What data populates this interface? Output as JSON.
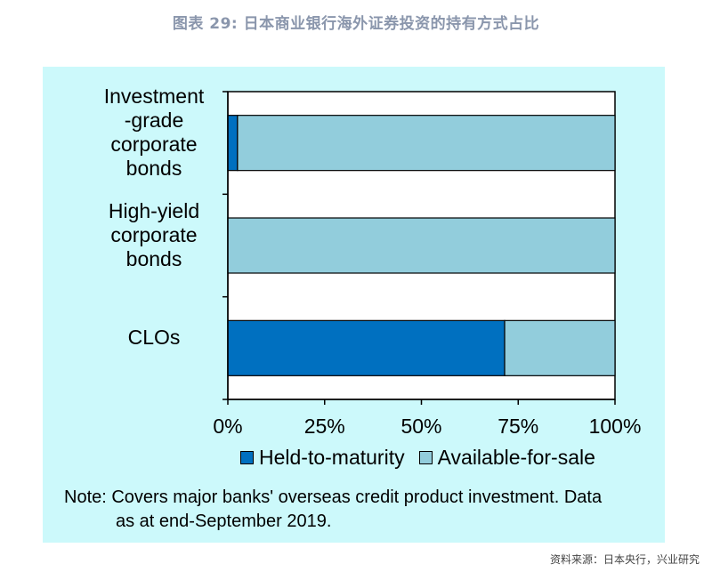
{
  "header": {
    "title": "图表 29: 日本商业银行海外证券投资的持有方式占比"
  },
  "chart_data": {
    "type": "bar",
    "orientation": "horizontal",
    "stacked": true,
    "categories": [
      "Investment\n-grade\ncorporate\nbonds",
      "High-yield\ncorporate\nbonds",
      "CLOs"
    ],
    "series": [
      {
        "name": "Held-to-maturity",
        "color": "#0070c0",
        "values": [
          2.5,
          0,
          71.5
        ]
      },
      {
        "name": "Available-for-sale",
        "color": "#92cddc",
        "values": [
          97.5,
          100,
          28.5
        ]
      }
    ],
    "xlim": [
      0,
      100
    ],
    "x_ticks": [
      "0%",
      "25%",
      "50%",
      "75%",
      "100%"
    ],
    "grid": false,
    "legend_position": "bottom"
  },
  "footer": {
    "note_line1": "Note: Covers major banks' overseas credit product investment. Data",
    "note_line2": "as at end-September 2019.",
    "source": "资料来源：日本央行，兴业研究"
  }
}
